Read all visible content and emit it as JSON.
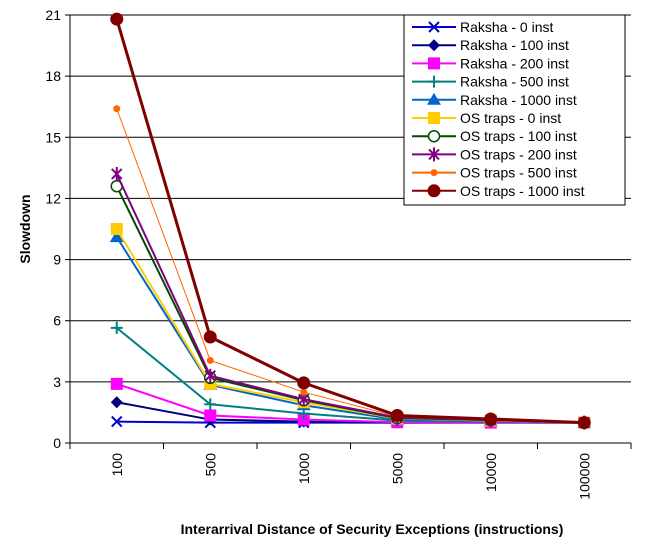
{
  "chart_data": {
    "type": "line",
    "title": "",
    "xlabel": "Interarrival Distance of Security Exceptions (instructions)",
    "ylabel": "Slowdown",
    "categories": [
      "100",
      "500",
      "1000",
      "5000",
      "10000",
      "100000"
    ],
    "ylim": [
      0,
      21
    ],
    "yticks": [
      0,
      3,
      6,
      9,
      12,
      15,
      18,
      21
    ],
    "grid": "horizontal",
    "legend": "top-right",
    "series": [
      {
        "name": "Raksha - 0 inst",
        "color": "#0000cc",
        "marker": "x",
        "values": [
          1.05,
          1.0,
          1.0,
          1.0,
          1.0,
          1.0
        ]
      },
      {
        "name": "Raksha - 100 inst",
        "color": "#000080",
        "marker": "diamond",
        "values": [
          2.0,
          1.15,
          1.05,
          1.0,
          1.0,
          1.0
        ]
      },
      {
        "name": "Raksha - 200 inst",
        "color": "#ff00ff",
        "marker": "square",
        "values": [
          2.9,
          1.35,
          1.15,
          1.02,
          1.0,
          1.0
        ]
      },
      {
        "name": "Raksha - 500 inst",
        "color": "#008080",
        "marker": "plus",
        "values": [
          5.65,
          1.9,
          1.45,
          1.1,
          1.05,
          1.0
        ]
      },
      {
        "name": "Raksha - 1000 inst",
        "color": "#0066cc",
        "marker": "triangle",
        "values": [
          10.1,
          2.85,
          1.85,
          1.15,
          1.08,
          1.0
        ]
      },
      {
        "name": "OS traps - 0 inst",
        "color": "#ffcc00",
        "marker": "square",
        "values": [
          10.5,
          2.9,
          2.0,
          1.2,
          1.1,
          1.0
        ]
      },
      {
        "name": "OS traps - 100 inst",
        "color": "#004d00",
        "marker": "circle-open",
        "values": [
          12.6,
          3.2,
          2.1,
          1.22,
          1.12,
          1.0
        ]
      },
      {
        "name": "OS traps - 200 inst",
        "color": "#800080",
        "marker": "star",
        "values": [
          13.2,
          3.3,
          2.15,
          1.25,
          1.13,
          1.0
        ]
      },
      {
        "name": "OS traps - 500 inst",
        "color": "#ff6600",
        "marker": "dot",
        "values": [
          16.4,
          4.05,
          2.5,
          1.3,
          1.15,
          1.0
        ]
      },
      {
        "name": "OS traps - 1000 inst",
        "color": "#800000",
        "marker": "circle",
        "values": [
          20.8,
          5.2,
          2.95,
          1.35,
          1.18,
          1.0
        ]
      }
    ]
  }
}
